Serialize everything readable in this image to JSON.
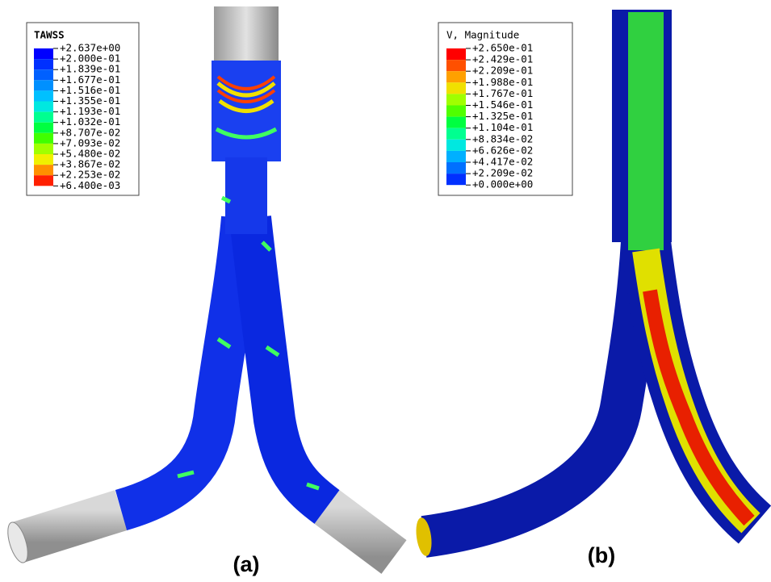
{
  "panels": [
    {
      "legend_title": "TAWSS",
      "labels": [
        "+2.637e+00",
        "+2.000e-01",
        "+1.839e-01",
        "+1.677e-01",
        "+1.516e-01",
        "+1.355e-01",
        "+1.193e-01",
        "+1.032e-01",
        "+8.707e-02",
        "+7.093e-02",
        "+5.480e-02",
        "+3.867e-02",
        "+2.253e-02",
        "+6.400e-03"
      ],
      "colors": [
        "#0000ff",
        "#0030ff",
        "#0060ff",
        "#0090ff",
        "#00c0ff",
        "#00e8e0",
        "#00ff90",
        "#00ff40",
        "#40ff00",
        "#a0ff00",
        "#f0f000",
        "#ff9000",
        "#ff2000"
      ],
      "caption": "(a)"
    },
    {
      "legend_title": "V, Magnitude",
      "labels": [
        "+2.650e-01",
        "+2.429e-01",
        "+2.209e-01",
        "+1.988e-01",
        "+1.767e-01",
        "+1.546e-01",
        "+1.325e-01",
        "+1.104e-01",
        "+8.834e-02",
        "+6.626e-02",
        "+4.417e-02",
        "+2.209e-02",
        "+0.000e+00"
      ],
      "colors": [
        "#ff0000",
        "#ff5000",
        "#ffa000",
        "#f0e000",
        "#a0ff00",
        "#50ff00",
        "#00ff40",
        "#00ff90",
        "#00e8e0",
        "#00b0ff",
        "#0070ff",
        "#0030ff"
      ],
      "caption": "(b)"
    }
  ]
}
